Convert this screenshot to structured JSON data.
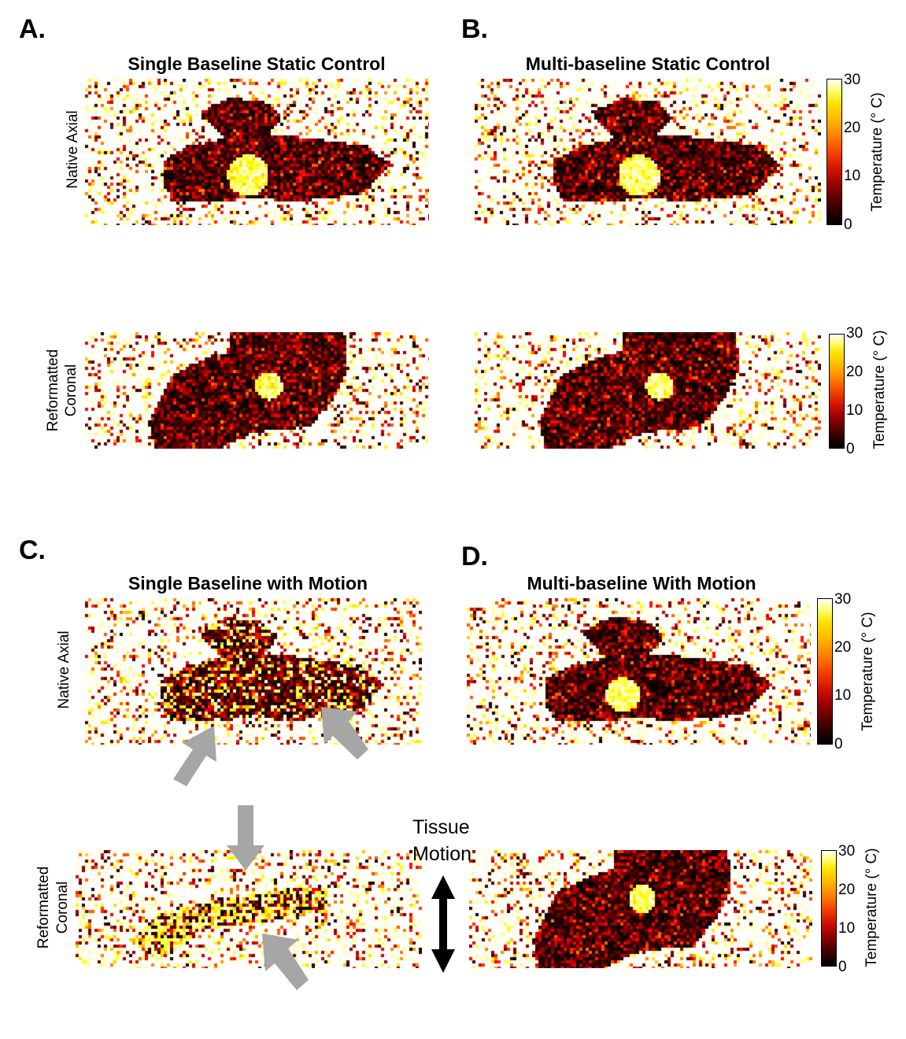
{
  "panels": [
    {
      "id": "A",
      "label": "A.",
      "title": "Single Baseline Static Control"
    },
    {
      "id": "B",
      "label": "B.",
      "title": "Multi-baseline Static Control"
    },
    {
      "id": "C",
      "label": "C.",
      "title": "Single Baseline with Motion"
    },
    {
      "id": "D",
      "label": "D.",
      "title": "Multi-baseline With Motion"
    }
  ],
  "row_labels": {
    "native_axial": "Native Axial",
    "reformatted": "Reformatted",
    "coronal": "Coronal"
  },
  "colorbar": {
    "title": "Temperature (° C)",
    "ticks": [
      "30",
      "20",
      "10",
      "0"
    ],
    "colormap": "hot"
  },
  "annotation": {
    "tissue": "Tissue",
    "motion": "Motion"
  },
  "colors": {
    "arrow_gray": "#a6a6a6",
    "arrow_black": "#000000"
  }
}
